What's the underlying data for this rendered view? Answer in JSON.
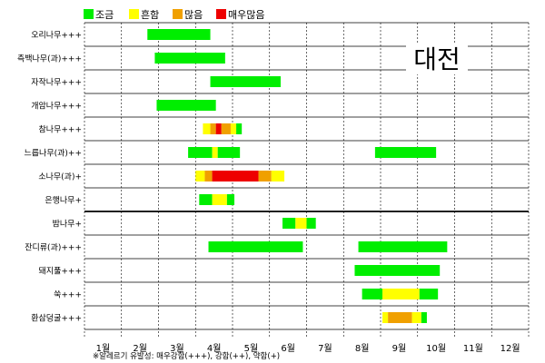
{
  "chart_data": {
    "type": "timeline-bar",
    "title": "대전",
    "footnote": "※알레르기 유발성: 매우강함(+++), 강함(++), 약함(+)",
    "x_ticks": [
      "1월",
      "2월",
      "3월",
      "4월",
      "5월",
      "6월",
      "7월",
      "8월",
      "9월",
      "10월",
      "11월",
      "12월"
    ],
    "x_range": [
      0.5,
      12.5
    ],
    "levels": [
      {
        "key": "low",
        "label": "조금",
        "color": "#00ee00"
      },
      {
        "key": "common",
        "label": "흔함",
        "color": "#ffff00"
      },
      {
        "key": "many",
        "label": "많음",
        "color": "#f0a000"
      },
      {
        "key": "very_many",
        "label": "매우많음",
        "color": "#ee0000"
      }
    ],
    "legend_position": "top-left",
    "categories": [
      {
        "name": "오리나무+++",
        "segments": [
          {
            "start": 2.2,
            "end": 3.9,
            "level": "low"
          }
        ]
      },
      {
        "name": "측백나무(과)+++",
        "segments": [
          {
            "start": 2.4,
            "end": 4.3,
            "level": "low"
          }
        ]
      },
      {
        "name": "자작나무+++",
        "segments": [
          {
            "start": 3.9,
            "end": 5.8,
            "level": "low"
          }
        ]
      },
      {
        "name": "개암나무+++",
        "segments": [
          {
            "start": 2.45,
            "end": 4.05,
            "level": "low"
          }
        ]
      },
      {
        "name": "참나무+++",
        "segments": [
          {
            "start": 3.7,
            "end": 3.9,
            "level": "common"
          },
          {
            "start": 3.9,
            "end": 4.05,
            "level": "many"
          },
          {
            "start": 4.05,
            "end": 4.2,
            "level": "very_many"
          },
          {
            "start": 4.2,
            "end": 4.45,
            "level": "many"
          },
          {
            "start": 4.45,
            "end": 4.6,
            "level": "common"
          },
          {
            "start": 4.6,
            "end": 4.75,
            "level": "low"
          }
        ]
      },
      {
        "name": "느릅나무(과)++",
        "segments": [
          {
            "start": 3.3,
            "end": 3.95,
            "level": "low"
          },
          {
            "start": 3.95,
            "end": 4.1,
            "level": "common"
          },
          {
            "start": 4.1,
            "end": 4.7,
            "level": "low"
          },
          {
            "start": 8.35,
            "end": 10.0,
            "level": "low"
          }
        ]
      },
      {
        "name": "소나무(과)+",
        "segments": [
          {
            "start": 3.5,
            "end": 3.75,
            "level": "common"
          },
          {
            "start": 3.75,
            "end": 3.95,
            "level": "many"
          },
          {
            "start": 3.95,
            "end": 5.2,
            "level": "very_many"
          },
          {
            "start": 5.2,
            "end": 5.55,
            "level": "many"
          },
          {
            "start": 5.55,
            "end": 5.9,
            "level": "common"
          }
        ]
      },
      {
        "name": "은행나무+",
        "segments": [
          {
            "start": 3.6,
            "end": 3.95,
            "level": "low"
          },
          {
            "start": 3.95,
            "end": 4.35,
            "level": "common"
          },
          {
            "start": 4.35,
            "end": 4.55,
            "level": "low"
          }
        ]
      },
      {
        "name": "밤나무+",
        "segments": [
          {
            "start": 5.85,
            "end": 6.2,
            "level": "low"
          },
          {
            "start": 6.2,
            "end": 6.5,
            "level": "common"
          },
          {
            "start": 6.5,
            "end": 6.75,
            "level": "low"
          }
        ]
      },
      {
        "name": "잔디류(과)+++",
        "segments": [
          {
            "start": 3.85,
            "end": 6.4,
            "level": "low"
          },
          {
            "start": 7.9,
            "end": 10.3,
            "level": "low"
          }
        ]
      },
      {
        "name": "돼지풀+++",
        "segments": [
          {
            "start": 7.8,
            "end": 10.1,
            "level": "low"
          }
        ]
      },
      {
        "name": "쑥+++",
        "segments": [
          {
            "start": 8.0,
            "end": 8.55,
            "level": "low"
          },
          {
            "start": 8.55,
            "end": 9.55,
            "level": "common"
          },
          {
            "start": 9.55,
            "end": 10.05,
            "level": "low"
          }
        ]
      },
      {
        "name": "환삼덩굴+++",
        "segments": [
          {
            "start": 8.55,
            "end": 8.7,
            "level": "common"
          },
          {
            "start": 8.7,
            "end": 9.35,
            "level": "many"
          },
          {
            "start": 9.35,
            "end": 9.6,
            "level": "common"
          },
          {
            "start": 9.6,
            "end": 9.75,
            "level": "low"
          }
        ]
      }
    ],
    "group_separator_after": 8
  }
}
